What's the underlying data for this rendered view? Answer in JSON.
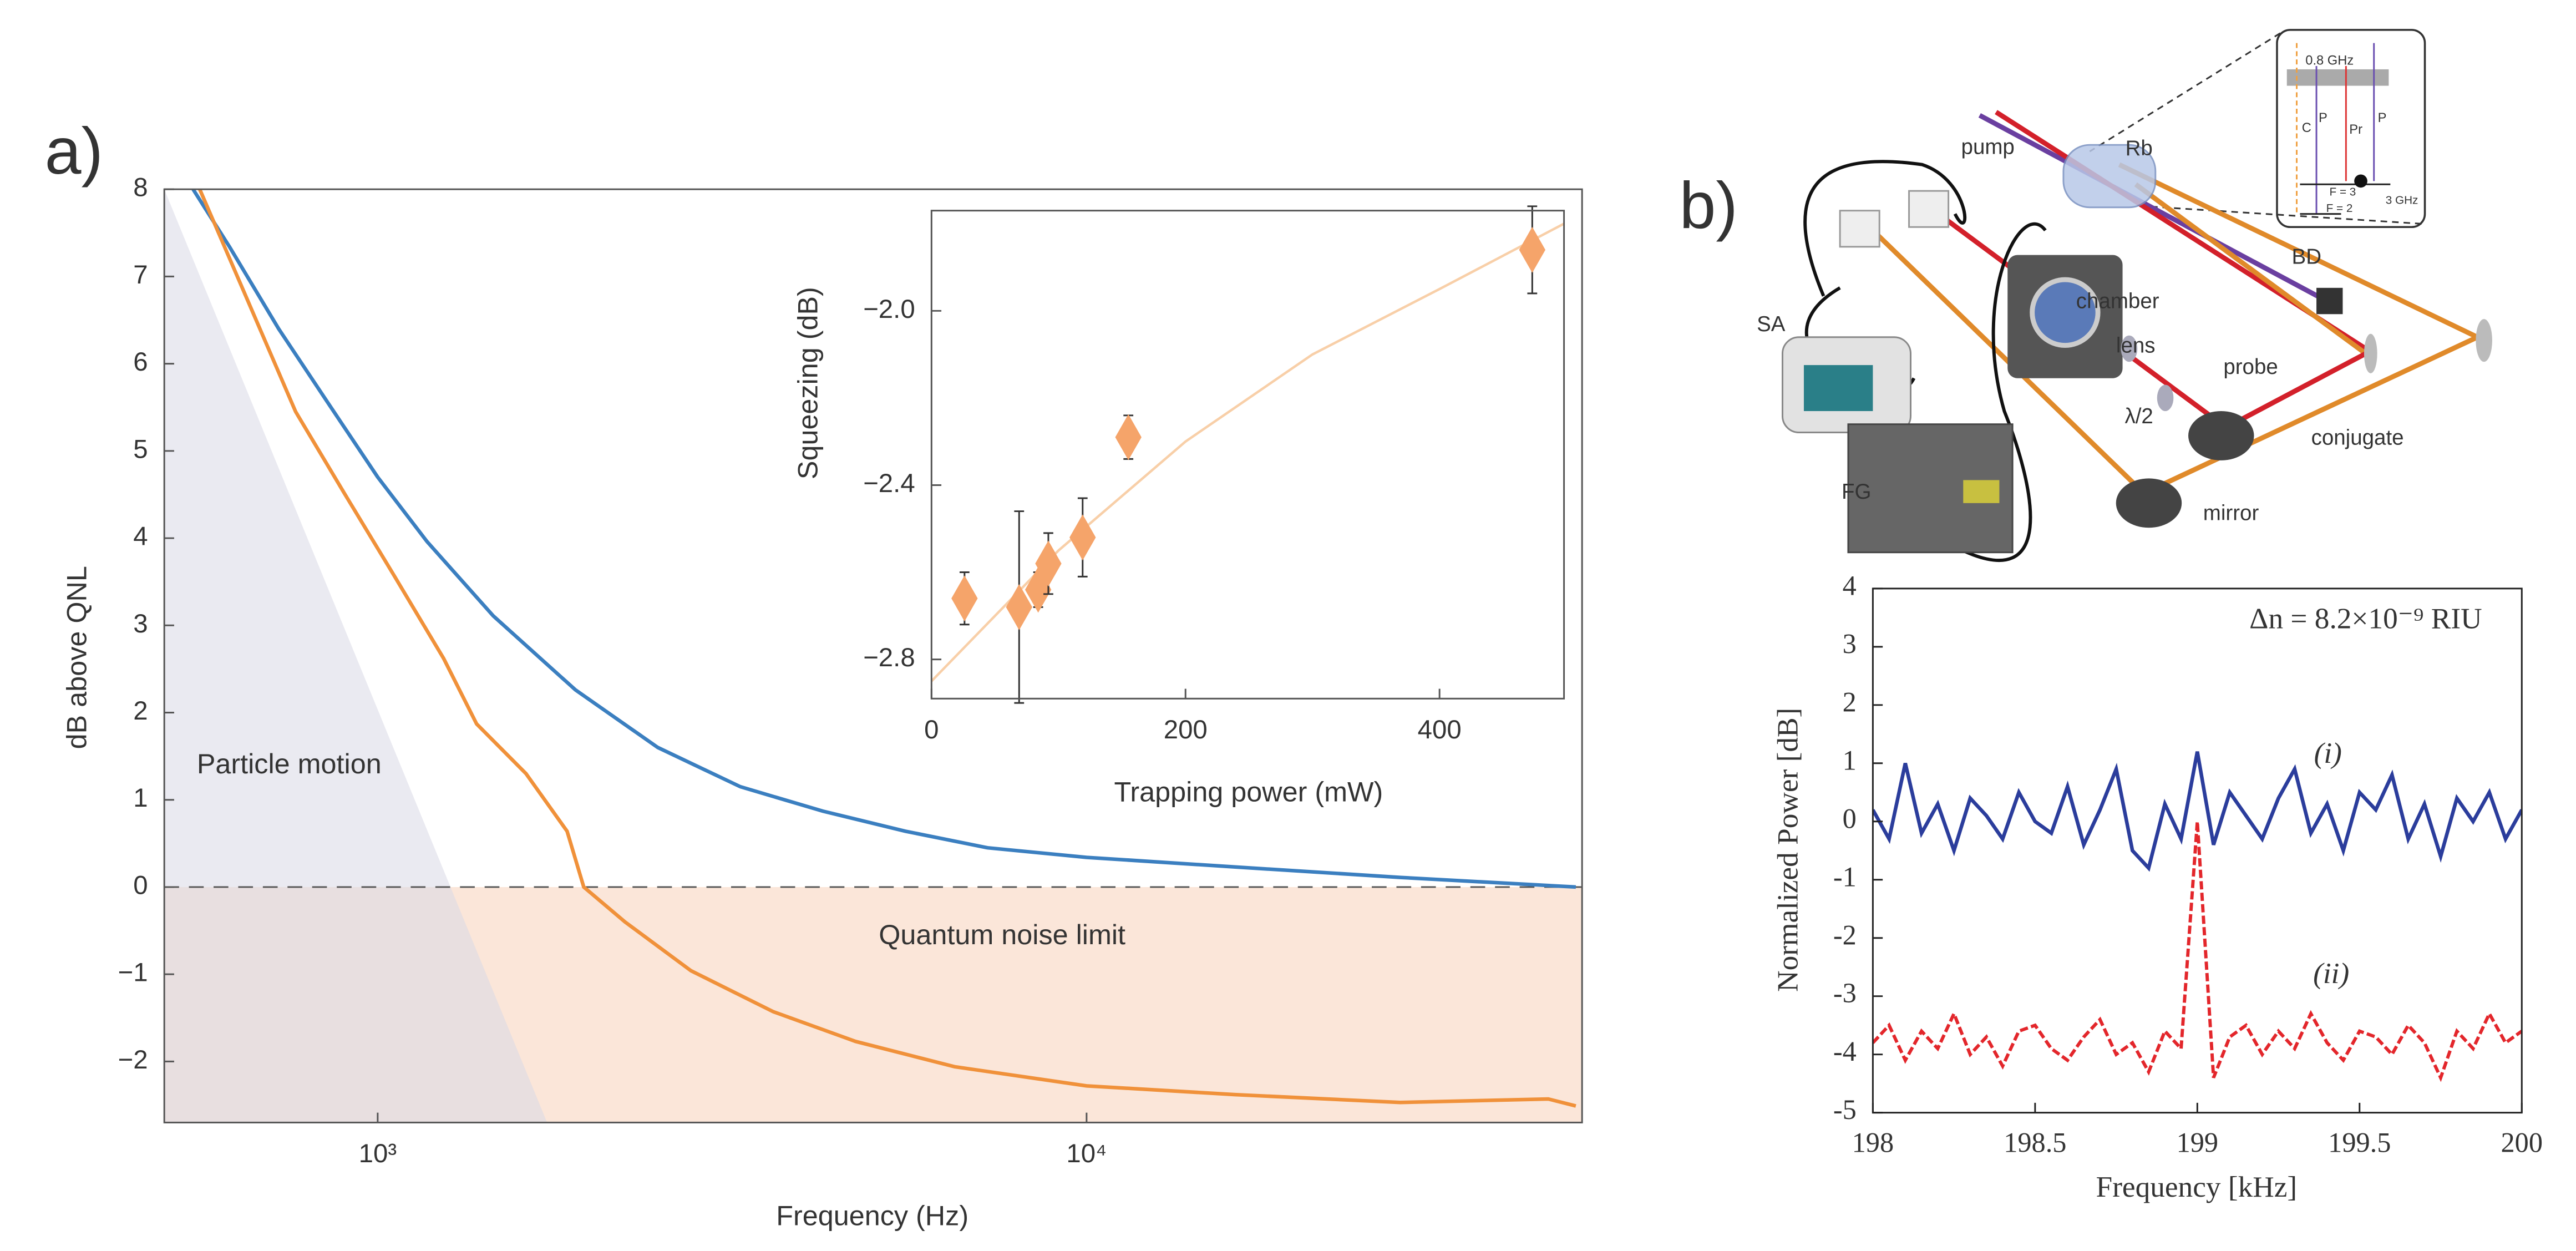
{
  "chart_data": [
    {
      "type": "line",
      "panel_label": "a)",
      "x_label": "Frequency (Hz)",
      "y_label": "dB above QNL",
      "xlog": true,
      "xlim": [
        500,
        50000
      ],
      "ylim": [
        -2.7,
        8
      ],
      "xticks": [
        {
          "value": 1000,
          "label": "10³"
        },
        {
          "value": 10000,
          "label": "10⁴"
        }
      ],
      "yticks": [
        {
          "value": -2,
          "label": "−2"
        },
        {
          "value": -1,
          "label": "−1"
        },
        0,
        1,
        2,
        3,
        4,
        5,
        6,
        7,
        8
      ],
      "annotations": [
        "Particle motion",
        "Quantum noise limit"
      ],
      "series": [
        {
          "color": "#3b7fc0",
          "x": [
            549,
            618,
            725,
            851,
            1000,
            1174,
            1455,
            1901,
            2484,
            3248,
            4246,
            5550,
            7250,
            10000,
            16200,
            27700,
            49000
          ],
          "values": [
            8.0,
            7.34,
            6.4,
            5.55,
            4.7,
            3.96,
            3.11,
            2.26,
            1.6,
            1.15,
            0.87,
            0.64,
            0.45,
            0.34,
            0.23,
            0.11,
            0.0
          ]
        },
        {
          "color": "#f0913a",
          "x": [
            561,
            652,
            766,
            898,
            1055,
            1239,
            1379,
            1619,
            1850,
            1953,
            2233,
            2767,
            3616,
            4721,
            6513,
            10000,
            16200,
            27700,
            44800,
            49000
          ],
          "values": [
            8.0,
            6.77,
            5.45,
            4.51,
            3.57,
            2.62,
            1.87,
            1.3,
            0.64,
            0.0,
            -0.4,
            -0.96,
            -1.43,
            -1.77,
            -2.06,
            -2.28,
            -2.38,
            -2.47,
            -2.43,
            -2.51
          ]
        }
      ]
    },
    {
      "type": "scatter",
      "x_label": "Trapping power (mW)",
      "y_label": "Squeezing (dB)",
      "xlim": [
        0,
        498
      ],
      "ylim": [
        -2.89,
        -1.77
      ],
      "xticks": [
        0,
        200,
        400
      ],
      "yticks": [
        {
          "value": -2.0,
          "label": "−2.0"
        },
        {
          "value": -2.4,
          "label": "−2.4"
        },
        {
          "value": -2.8,
          "label": "−2.8"
        }
      ],
      "color": "#f5a46a",
      "x": [
        26,
        69,
        84,
        92,
        119,
        155,
        473
      ],
      "values": [
        -2.66,
        -2.68,
        -2.64,
        -2.58,
        -2.52,
        -2.29,
        -1.86
      ],
      "errors": [
        0.06,
        0.22,
        0.04,
        0.07,
        0.09,
        0.05,
        0.1
      ],
      "fit": {
        "color": "#f8cfa8",
        "x": [
          0,
          100,
          200,
          300,
          400,
          498
        ],
        "values": [
          -2.85,
          -2.55,
          -2.3,
          -2.1,
          -1.95,
          -1.8
        ]
      }
    },
    {
      "type": "line",
      "x_label": "Frequency [kHz]",
      "y_label": "Normalized Power [dB]",
      "xlim": [
        198,
        200
      ],
      "ylim": [
        -5,
        4
      ],
      "xticks": [
        198,
        198.5,
        199,
        199.5,
        200
      ],
      "yticks": [
        -5,
        -4,
        -3,
        -2,
        -1,
        0,
        1,
        2,
        3,
        4
      ],
      "annotations": [
        "Δn = 8.2×10⁻⁹ RIU",
        "(i)",
        "(ii)"
      ],
      "x": [
        198,
        198.05,
        198.1,
        198.15,
        198.2,
        198.25,
        198.3,
        198.35,
        198.4,
        198.45,
        198.5,
        198.55,
        198.6,
        198.65,
        198.7,
        198.75,
        198.8,
        198.85,
        198.9,
        198.95,
        199,
        199.05,
        199.1,
        199.15,
        199.2,
        199.25,
        199.3,
        199.35,
        199.4,
        199.45,
        199.5,
        199.55,
        199.6,
        199.65,
        199.7,
        199.75,
        199.8,
        199.85,
        199.9,
        199.95,
        200
      ],
      "series": [
        {
          "color": "#2b3d9c",
          "values": [
            0.2,
            -0.3,
            1.0,
            -0.2,
            0.3,
            -0.5,
            0.4,
            0.1,
            -0.3,
            0.5,
            0.0,
            -0.2,
            0.6,
            -0.4,
            0.2,
            0.9,
            -0.5,
            -0.8,
            0.3,
            -0.3,
            1.2,
            -0.4,
            0.5,
            0.1,
            -0.3,
            0.4,
            0.9,
            -0.2,
            0.3,
            -0.5,
            0.5,
            0.2,
            0.8,
            -0.3,
            0.3,
            -0.6,
            0.4,
            0.0,
            0.5,
            -0.3,
            0.2
          ]
        },
        {
          "color": "#e3262b",
          "dash": true,
          "values": [
            -3.8,
            -3.5,
            -4.1,
            -3.6,
            -3.9,
            -3.3,
            -4.0,
            -3.7,
            -4.2,
            -3.6,
            -3.5,
            -3.9,
            -4.1,
            -3.7,
            -3.4,
            -4.0,
            -3.8,
            -4.3,
            -3.6,
            -3.9,
            0.0,
            -4.4,
            -3.7,
            -3.5,
            -4.0,
            -3.6,
            -3.9,
            -3.3,
            -3.8,
            -4.1,
            -3.6,
            -3.7,
            -4.0,
            -3.5,
            -3.8,
            -4.4,
            -3.6,
            -3.9,
            -3.3,
            -3.8,
            -3.6
          ]
        }
      ]
    }
  ],
  "schematic": {
    "panel_label": "b)",
    "labels": [
      "pump",
      "Rb",
      "BD",
      "chamber",
      "lens",
      "probe",
      "λ/2",
      "conjugate",
      "mirror",
      "SA",
      "FG",
      "0.8 GHz",
      "C",
      "P",
      "Pr",
      "P",
      "F = 3",
      "F = 2",
      "3 GHz"
    ]
  }
}
